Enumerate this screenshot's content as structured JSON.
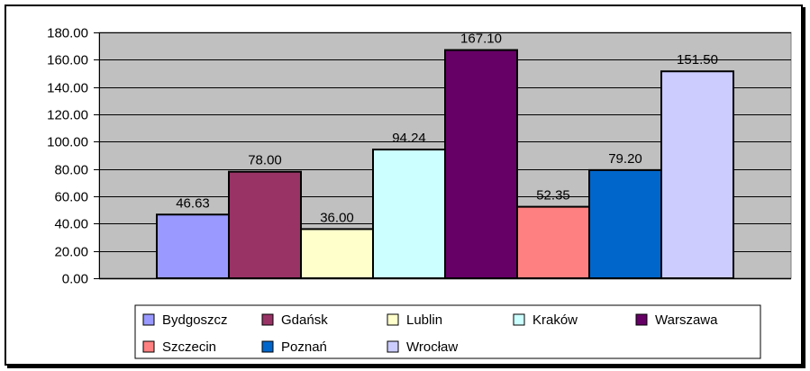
{
  "chart_data": {
    "type": "bar",
    "ylim": [
      0,
      180
    ],
    "ytick_step": 20,
    "ytick_decimals": 2,
    "grid": true,
    "legend_position": "bottom",
    "plot_background": "#C0C0C0",
    "series": [
      {
        "name": "Bydgoszcz",
        "value": 46.63,
        "label": "46.63",
        "color": "#9999FF"
      },
      {
        "name": "Gdańsk",
        "value": 78.0,
        "label": "78.00",
        "color": "#993366"
      },
      {
        "name": "Lublin",
        "value": 36.0,
        "label": "36.00",
        "color": "#FFFFCC"
      },
      {
        "name": "Kraków",
        "value": 94.24,
        "label": "94.24",
        "color": "#CCFFFF"
      },
      {
        "name": "Warszawa",
        "value": 167.1,
        "label": "167.10",
        "color": "#660066"
      },
      {
        "name": "Szczecin",
        "value": 52.35,
        "label": "52.35",
        "color": "#FF8080"
      },
      {
        "name": "Poznań",
        "value": 79.2,
        "label": "79.20",
        "color": "#0066CC"
      },
      {
        "name": "Wrocław",
        "value": 151.5,
        "label": "151.50",
        "color": "#CCCCFF"
      }
    ]
  }
}
